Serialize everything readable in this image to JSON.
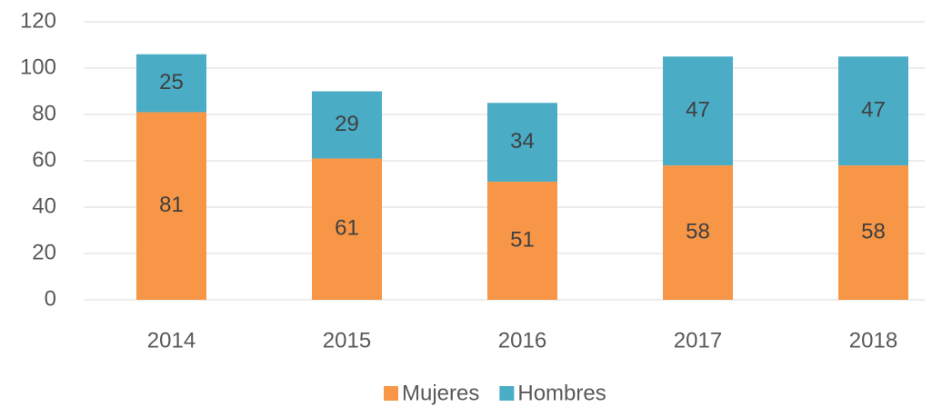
{
  "chart_data": {
    "type": "stacked_bar",
    "categories": [
      "2014",
      "2015",
      "2016",
      "2017",
      "2018"
    ],
    "series": [
      {
        "name": "Mujeres",
        "color": "#F79646",
        "values": [
          81,
          61,
          51,
          58,
          58
        ]
      },
      {
        "name": "Hombres",
        "color": "#4BACC6",
        "values": [
          25,
          29,
          34,
          47,
          47
        ]
      }
    ],
    "ylim": [
      0,
      120
    ],
    "yticks": [
      0,
      20,
      40,
      60,
      80,
      100,
      120
    ],
    "grid": true,
    "legend": "bottom"
  }
}
